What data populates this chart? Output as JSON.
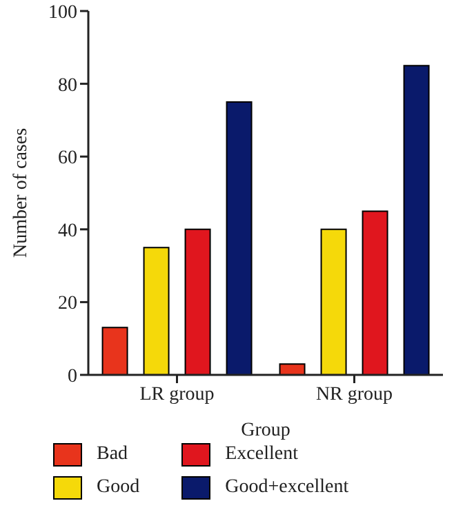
{
  "chart_data": {
    "type": "bar",
    "xlabel": "Group",
    "ylabel": "Number of cases",
    "categories": [
      "LR group",
      "NR group"
    ],
    "series": [
      {
        "name": "Bad",
        "color": "#e8341c",
        "values": [
          13,
          3
        ]
      },
      {
        "name": "Good",
        "color": "#f5d90a",
        "values": [
          35,
          40
        ]
      },
      {
        "name": "Excellent",
        "color": "#e0161e",
        "values": [
          40,
          45
        ]
      },
      {
        "name": "Good+excellent",
        "color": "#0a1a6b",
        "values": [
          75,
          85
        ]
      }
    ],
    "ylim": [
      0,
      100
    ],
    "yticks": [
      0,
      20,
      40,
      60,
      80,
      100
    ],
    "grid": false,
    "legend": "bottom"
  }
}
